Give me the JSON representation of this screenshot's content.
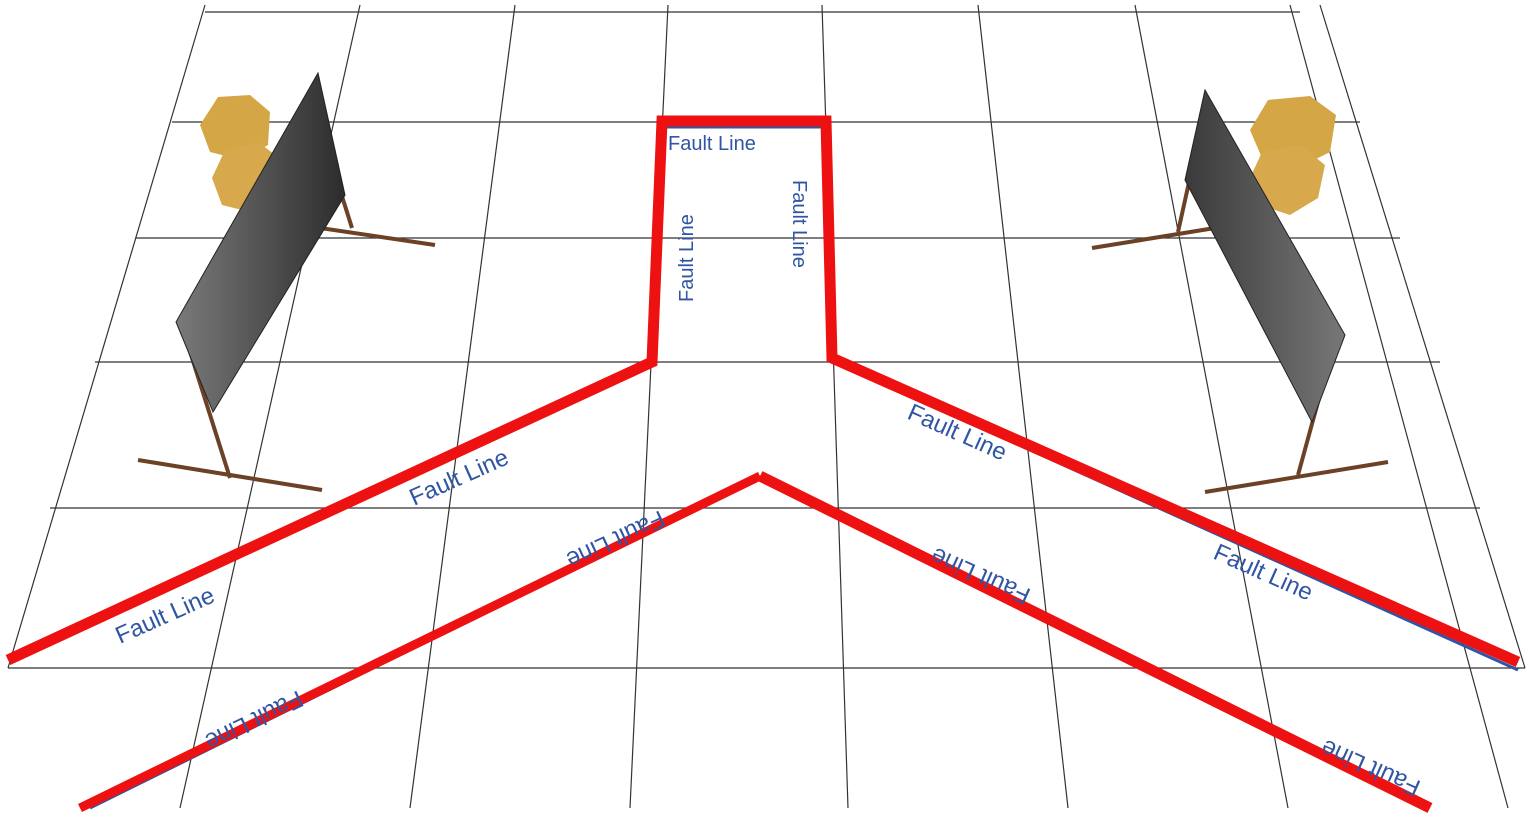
{
  "diagram": {
    "fault_label": "Fault Line",
    "colors": {
      "fault_red": "#ee1111",
      "fault_blue": "#2f55a4",
      "grid": "#333333",
      "panel_dark": "#3a3a3a",
      "panel_light": "#7a7a7a",
      "stand": "#6b4226",
      "bush": "#d4a645"
    },
    "labels": [
      "Fault Line",
      "Fault Line",
      "Fault Line",
      "Fault Line",
      "Fault Line",
      "Fault Line",
      "Fault Line",
      "Fault Line",
      "Fault Line",
      "Fault Line",
      "Fault Line"
    ],
    "icons": [
      "target-panel-icon",
      "bush-icon"
    ]
  }
}
